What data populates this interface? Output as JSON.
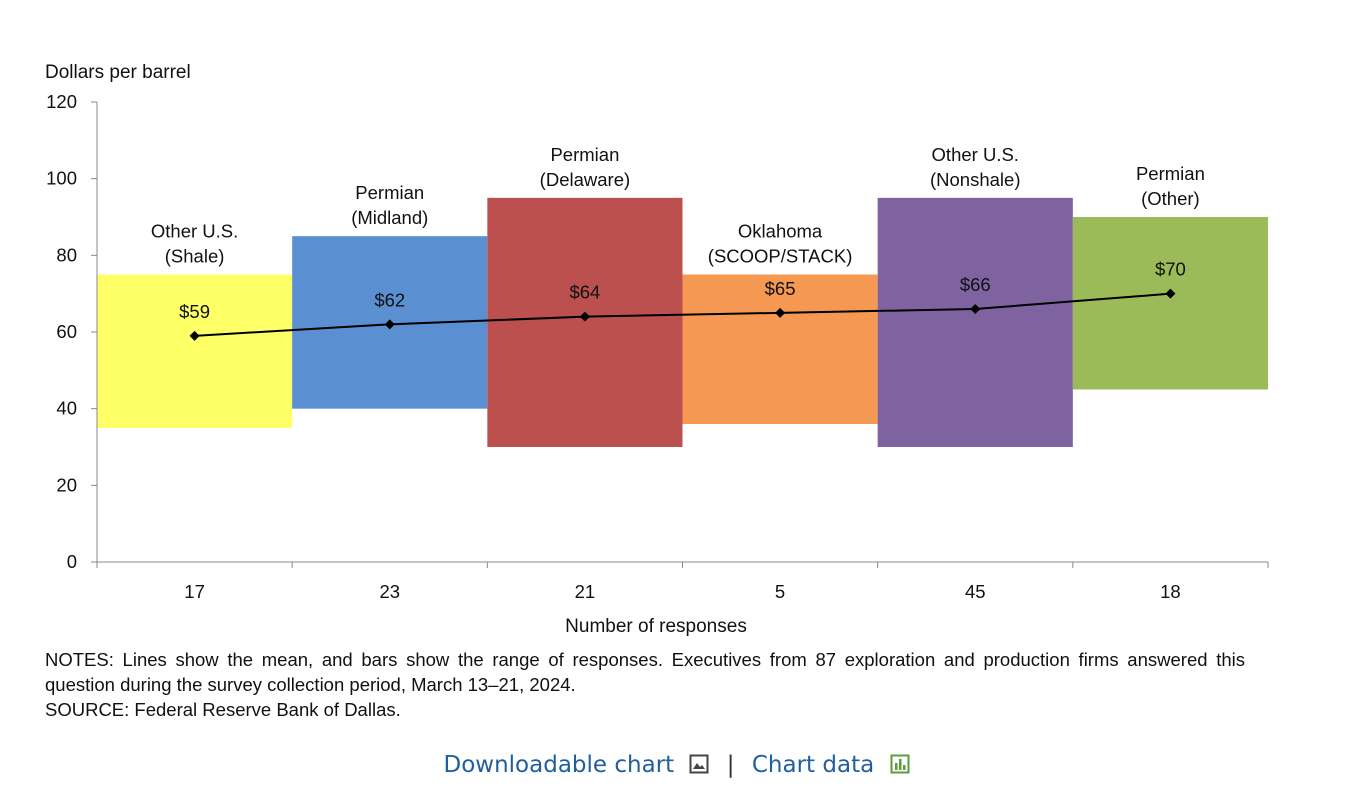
{
  "chart_data": {
    "type": "floating-bar-with-line",
    "ylabel": "Dollars per barrel",
    "xlabel": "Number of responses",
    "ylim": [
      0,
      120
    ],
    "yticks": [
      0,
      20,
      40,
      60,
      80,
      100,
      120
    ],
    "series_bar_name": "Range of responses",
    "series_line_name": "Mean",
    "categories": [
      {
        "name_line1": "Other U.S.",
        "name_line2": "(Shale)",
        "responses": "17",
        "low": 35,
        "high": 75,
        "mean": 59,
        "mean_label": "$59",
        "color": "#ffff66"
      },
      {
        "name_line1": "Permian",
        "name_line2": "(Midland)",
        "responses": "23",
        "low": 40,
        "high": 85,
        "mean": 62,
        "mean_label": "$62",
        "color": "#5a8fd2"
      },
      {
        "name_line1": "Permian",
        "name_line2": "(Delaware)",
        "responses": "21",
        "low": 30,
        "high": 95,
        "mean": 64,
        "mean_label": "$64",
        "color": "#bc504f"
      },
      {
        "name_line1": "Oklahoma",
        "name_line2": "(SCOOP/STACK)",
        "responses": "5",
        "low": 36,
        "high": 75,
        "mean": 65,
        "mean_label": "$65",
        "color": "#f49852"
      },
      {
        "name_line1": "Other U.S.",
        "name_line2": "(Nonshale)",
        "responses": "45",
        "low": 30,
        "high": 95,
        "mean": 66,
        "mean_label": "$66",
        "color": "#7f63a0"
      },
      {
        "name_line1": "Permian",
        "name_line2": "(Other)",
        "responses": "18",
        "low": 45,
        "high": 90,
        "mean": 70,
        "mean_label": "$70",
        "color": "#9bbb59"
      }
    ]
  },
  "notes": {
    "line1": "NOTES: Lines show the mean, and bars show the range of responses. Executives from 87 exploration and production firms answered this question during the survey collection period, March 13–21, 2024.",
    "line2": "SOURCE: Federal Reserve Bank of Dallas."
  },
  "links": {
    "downloadable": "Downloadable chart",
    "separator": "|",
    "chart_data": "Chart data"
  },
  "icons": {
    "download": "image-icon",
    "data": "bar-chart-icon"
  }
}
